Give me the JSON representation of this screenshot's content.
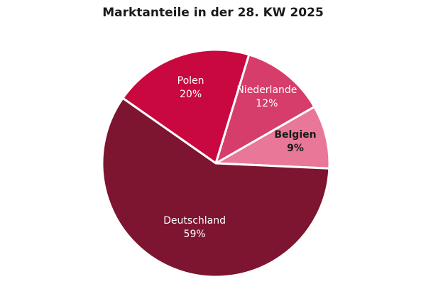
{
  "chart_data": {
    "type": "pie",
    "title": "Marktanteile in der 28. KW 2025",
    "categories": [
      "Deutschland",
      "Polen",
      "Niederlande",
      "Belgien"
    ],
    "values": [
      59,
      20,
      12,
      9
    ],
    "value_labels": [
      "59%",
      "20%",
      "12%",
      "9%"
    ],
    "colors": [
      "#7d1430",
      "#c8083f",
      "#d63d6a",
      "#e97797"
    ],
    "label_colors": [
      "#ffffff",
      "#ffffff",
      "#ffffff",
      "#1a1a1a"
    ],
    "legend": "none"
  }
}
